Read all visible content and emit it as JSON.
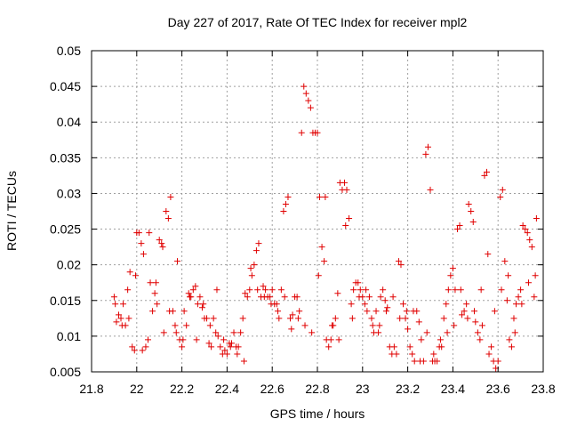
{
  "chart_data": {
    "type": "scatter",
    "title": "Day 227 of 2017, Rate Of TEC Index for receiver mpl2",
    "xlabel": "GPS time / hours",
    "ylabel": "ROTI / TECUs",
    "xlim": [
      21.8,
      23.8
    ],
    "ylim": [
      0.005,
      0.05
    ],
    "xticks": [
      "21.8",
      "22",
      "22.2",
      "22.4",
      "22.6",
      "22.8",
      "23",
      "23.2",
      "23.4",
      "23.6",
      "23.8"
    ],
    "yticks": [
      "0.005",
      "0.01",
      "0.015",
      "0.02",
      "0.025",
      "0.03",
      "0.035",
      "0.04",
      "0.045",
      "0.05"
    ],
    "grid": true,
    "series": [
      {
        "name": "ROTI",
        "color": "#e00000",
        "marker": "plus",
        "x": [
          21.9,
          21.91,
          21.92,
          21.93,
          21.94,
          21.95,
          21.96,
          21.97,
          21.98,
          21.99,
          22.0,
          22.01,
          22.02,
          22.03,
          22.04,
          22.05,
          22.06,
          22.07,
          22.08,
          22.09,
          22.1,
          22.11,
          22.12,
          22.13,
          22.14,
          22.15,
          22.16,
          22.17,
          22.18,
          22.19,
          22.2,
          22.21,
          22.22,
          22.23,
          22.24,
          22.25,
          22.26,
          22.27,
          22.28,
          22.29,
          22.3,
          22.31,
          22.32,
          22.33,
          22.34,
          22.35,
          22.36,
          22.37,
          22.38,
          22.39,
          22.4,
          22.41,
          22.42,
          22.43,
          22.44,
          22.45,
          22.46,
          22.47,
          22.48,
          22.49,
          22.5,
          22.51,
          22.52,
          22.53,
          22.54,
          22.55,
          22.56,
          22.57,
          22.58,
          22.59,
          22.6,
          22.61,
          22.62,
          22.63,
          22.64,
          22.65,
          22.66,
          22.67,
          22.68,
          22.69,
          22.7,
          22.71,
          22.72,
          22.73,
          22.74,
          22.75,
          22.76,
          22.77,
          22.78,
          22.79,
          22.8,
          22.81,
          22.82,
          22.83,
          22.84,
          22.85,
          22.86,
          22.87,
          22.88,
          22.89,
          22.9,
          22.91,
          22.92,
          22.93,
          22.94,
          22.95,
          22.96,
          22.97,
          22.98,
          22.99,
          23.0,
          23.01,
          23.02,
          23.03,
          23.04,
          23.05,
          23.06,
          23.07,
          23.08,
          23.09,
          23.1,
          23.11,
          23.12,
          23.13,
          23.14,
          23.15,
          23.16,
          23.17,
          23.18,
          23.19,
          23.2,
          23.21,
          23.22,
          23.23,
          23.24,
          23.25,
          23.26,
          23.27,
          23.28,
          23.29,
          23.3,
          23.31,
          23.32,
          23.33,
          23.34,
          23.35,
          23.36,
          23.37,
          23.38,
          23.39,
          23.4,
          23.41,
          23.42,
          23.43,
          23.44,
          23.45,
          23.46,
          23.47,
          23.48,
          23.49,
          23.5,
          23.51,
          23.52,
          23.53,
          23.54,
          23.55,
          23.56,
          23.57,
          23.58,
          23.59,
          23.6,
          23.61,
          23.62,
          23.63,
          23.64,
          23.65,
          23.66,
          23.67,
          23.68,
          23.69,
          23.7,
          23.71,
          23.72,
          23.73,
          23.74,
          23.75,
          23.76,
          23.77,
          21.905,
          21.935,
          21.965,
          21.995,
          22.025,
          22.055,
          22.085,
          22.115,
          22.145,
          22.175,
          22.205,
          22.235,
          22.265,
          22.295,
          22.325,
          22.355,
          22.385,
          22.415,
          22.445,
          22.475,
          22.505,
          22.535,
          22.565,
          22.595,
          22.625,
          22.655,
          22.685,
          22.715,
          22.745,
          22.775,
          22.805,
          22.835,
          22.865,
          22.895,
          22.925,
          22.955,
          22.985,
          23.015,
          23.045,
          23.075,
          23.105,
          23.135,
          23.165,
          23.195,
          23.225,
          23.255,
          23.285,
          23.315,
          23.345,
          23.375,
          23.405,
          23.435,
          23.465,
          23.495,
          23.525,
          23.555,
          23.585,
          23.615,
          23.645,
          23.675,
          23.705,
          23.735,
          23.765
        ],
        "y": [
          0.0155,
          0.012,
          0.013,
          0.0125,
          0.0145,
          0.0115,
          0.0165,
          0.019,
          0.0085,
          0.008,
          0.0245,
          0.0245,
          0.023,
          0.0215,
          0.0085,
          0.0095,
          0.0175,
          0.0135,
          0.016,
          0.0145,
          0.0235,
          0.023,
          0.0105,
          0.0275,
          0.0265,
          0.0295,
          0.0135,
          0.0115,
          0.0205,
          0.0095,
          0.0085,
          0.0135,
          0.0115,
          0.016,
          0.0155,
          0.0165,
          0.017,
          0.0145,
          0.0155,
          0.014,
          0.0125,
          0.0125,
          0.009,
          0.0085,
          0.0125,
          0.0105,
          0.01,
          0.0085,
          0.0075,
          0.008,
          0.0075,
          0.009,
          0.009,
          0.0105,
          0.0085,
          0.0085,
          0.0105,
          0.0125,
          0.016,
          0.0155,
          0.0165,
          0.0185,
          0.02,
          0.022,
          0.023,
          0.0155,
          0.017,
          0.0165,
          0.0155,
          0.0155,
          0.0165,
          0.0145,
          0.0145,
          0.0125,
          0.0165,
          0.0275,
          0.0285,
          0.0295,
          0.0125,
          0.013,
          0.0155,
          0.0155,
          0.0135,
          0.0385,
          0.045,
          0.044,
          0.043,
          0.042,
          0.0385,
          0.0385,
          0.0385,
          0.0295,
          0.0225,
          0.0205,
          0.0095,
          0.0085,
          0.0095,
          0.0115,
          0.0125,
          0.016,
          0.0315,
          0.0305,
          0.0315,
          0.0305,
          0.0265,
          0.0145,
          0.0165,
          0.0175,
          0.0175,
          0.0165,
          0.0155,
          0.0145,
          0.0135,
          0.0155,
          0.0125,
          0.0105,
          0.0135,
          0.0105,
          0.0155,
          0.0165,
          0.015,
          0.014,
          0.0085,
          0.0075,
          0.0085,
          0.0075,
          0.0205,
          0.02,
          0.0145,
          0.0125,
          0.011,
          0.0085,
          0.0075,
          0.0065,
          0.0135,
          0.012,
          0.0095,
          0.0065,
          0.0355,
          0.0365,
          0.0305,
          0.0065,
          0.0065,
          0.0065,
          0.0085,
          0.0085,
          0.0125,
          0.0145,
          0.0165,
          0.0185,
          0.0195,
          0.0165,
          0.025,
          0.0255,
          0.013,
          0.0135,
          0.0145,
          0.0285,
          0.0275,
          0.026,
          0.012,
          0.0105,
          0.0095,
          0.0115,
          0.0325,
          0.033,
          0.0075,
          0.0085,
          0.0065,
          0.0055,
          0.0065,
          0.0295,
          0.0305,
          0.0205,
          0.015,
          0.0095,
          0.0085,
          0.0125,
          0.0145,
          0.0155,
          0.0165,
          0.0255,
          0.025,
          0.0245,
          0.0235,
          0.0225,
          0.0155,
          0.0265,
          0.0145,
          0.0115,
          0.0125,
          0.0185,
          0.008,
          0.0245,
          0.0175,
          0.0225,
          0.0135,
          0.0105,
          0.0095,
          0.0155,
          0.0095,
          0.0145,
          0.0115,
          0.0165,
          0.0095,
          0.0085,
          0.0075,
          0.0065,
          0.0195,
          0.0165,
          0.0155,
          0.0145,
          0.0135,
          0.0155,
          0.011,
          0.0125,
          0.0115,
          0.0105,
          0.0185,
          0.0295,
          0.0115,
          0.0095,
          0.0255,
          0.0125,
          0.0155,
          0.0165,
          0.0115,
          0.0115,
          0.0135,
          0.0155,
          0.0125,
          0.0135,
          0.0135,
          0.0065,
          0.0105,
          0.0075,
          0.0095,
          0.0105,
          0.0115,
          0.0165,
          0.0125,
          0.0135,
          0.0165,
          0.0215,
          0.0135,
          0.0165,
          0.0185,
          0.0105,
          0.0145,
          0.0175,
          0.0185
        ]
      }
    ]
  }
}
